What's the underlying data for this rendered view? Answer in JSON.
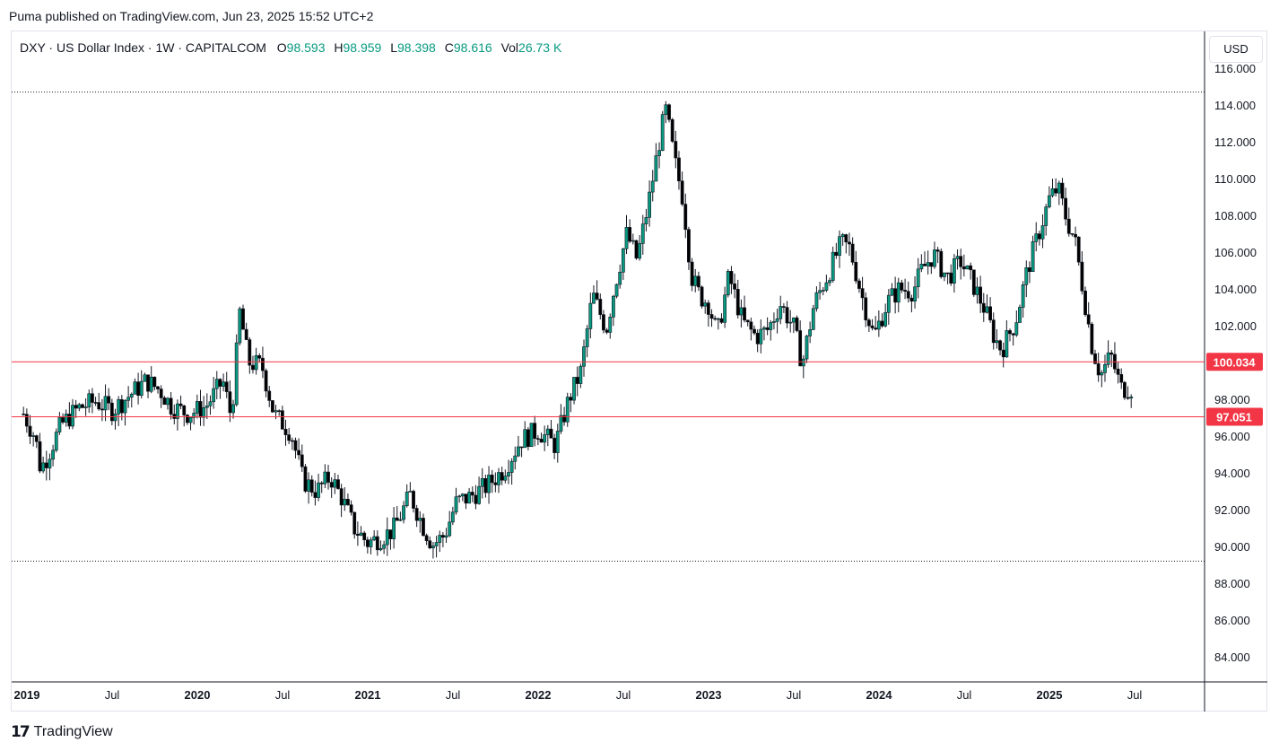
{
  "header": {
    "publish_text": "Puma published on TradingView.com, Jun 23, 2025 15:52 UTC+2"
  },
  "legend": {
    "symbol": "DXY · US Dollar Index · 1W · CAPITALCOM",
    "o_label": "O",
    "o_value": "98.593",
    "h_label": "H",
    "h_value": "98.959",
    "l_label": "L",
    "l_value": "98.398",
    "c_label": "C",
    "c_value": "98.616",
    "vol_label": "Vol",
    "vol_value": "26.73 K"
  },
  "currency_button": "USD",
  "footer": {
    "brand": "TradingView",
    "logo_glyph": "17"
  },
  "colors": {
    "up": "#089981",
    "down": "#f23645",
    "hline": "#f23645",
    "candle_body_down": "#000000"
  },
  "chart_data": {
    "type": "candlestick",
    "interval": "1W",
    "ylim": [
      83,
      116
    ],
    "y_ticks": [
      "84.000",
      "86.000",
      "88.000",
      "90.000",
      "92.000",
      "94.000",
      "96.000",
      "98.000",
      "100.000",
      "102.000",
      "104.000",
      "106.000",
      "108.000",
      "110.000",
      "112.000",
      "114.000",
      "116.000"
    ],
    "x_ticks": [
      {
        "label": "2019",
        "t": 2019.0,
        "bold": true
      },
      {
        "label": "Jul",
        "t": 2019.5,
        "bold": false
      },
      {
        "label": "2020",
        "t": 2020.0,
        "bold": true
      },
      {
        "label": "Jul",
        "t": 2020.5,
        "bold": false
      },
      {
        "label": "2021",
        "t": 2021.0,
        "bold": true
      },
      {
        "label": "Jul",
        "t": 2021.5,
        "bold": false
      },
      {
        "label": "2022",
        "t": 2022.0,
        "bold": true
      },
      {
        "label": "Jul",
        "t": 2022.5,
        "bold": false
      },
      {
        "label": "2023",
        "t": 2023.0,
        "bold": true
      },
      {
        "label": "Jul",
        "t": 2023.5,
        "bold": false
      },
      {
        "label": "2024",
        "t": 2024.0,
        "bold": true
      },
      {
        "label": "Jul",
        "t": 2024.5,
        "bold": false
      },
      {
        "label": "2025",
        "t": 2025.0,
        "bold": true
      },
      {
        "label": "Jul",
        "t": 2025.5,
        "bold": false
      }
    ],
    "horizontal_lines": [
      {
        "value": 100.034,
        "label": "100.034"
      },
      {
        "value": 97.051,
        "label": "97.051"
      }
    ],
    "range_lines": [
      114.7,
      89.2
    ],
    "price_path": [
      [
        2018.98,
        97.2
      ],
      [
        2019.05,
        95.9
      ],
      [
        2019.08,
        94.2
      ],
      [
        2019.12,
        94.9
      ],
      [
        2019.2,
        96.6
      ],
      [
        2019.3,
        97.5
      ],
      [
        2019.4,
        97.9
      ],
      [
        2019.5,
        97.4
      ],
      [
        2019.6,
        98.2
      ],
      [
        2019.7,
        99.0
      ],
      [
        2019.78,
        98.5
      ],
      [
        2019.85,
        97.6
      ],
      [
        2019.95,
        97.2
      ],
      [
        2020.05,
        97.6
      ],
      [
        2020.15,
        99.0
      ],
      [
        2020.2,
        97.0
      ],
      [
        2020.25,
        102.8
      ],
      [
        2020.3,
        100.0
      ],
      [
        2020.38,
        99.8
      ],
      [
        2020.45,
        97.2
      ],
      [
        2020.55,
        96.2
      ],
      [
        2020.62,
        93.6
      ],
      [
        2020.7,
        93.0
      ],
      [
        2020.78,
        93.8
      ],
      [
        2020.85,
        92.6
      ],
      [
        2020.92,
        91.0
      ],
      [
        2021.0,
        90.2
      ],
      [
        2021.08,
        90.5
      ],
      [
        2021.15,
        90.9
      ],
      [
        2021.25,
        92.8
      ],
      [
        2021.32,
        91.2
      ],
      [
        2021.38,
        90.1
      ],
      [
        2021.45,
        90.6
      ],
      [
        2021.52,
        92.4
      ],
      [
        2021.6,
        92.7
      ],
      [
        2021.7,
        93.3
      ],
      [
        2021.8,
        94.2
      ],
      [
        2021.9,
        95.8
      ],
      [
        2022.0,
        96.3
      ],
      [
        2022.1,
        95.5
      ],
      [
        2022.18,
        98.0
      ],
      [
        2022.25,
        99.5
      ],
      [
        2022.32,
        103.7
      ],
      [
        2022.4,
        101.8
      ],
      [
        2022.45,
        104.2
      ],
      [
        2022.52,
        107.0
      ],
      [
        2022.58,
        105.6
      ],
      [
        2022.65,
        108.8
      ],
      [
        2022.72,
        112.5
      ],
      [
        2022.75,
        113.7
      ],
      [
        2022.8,
        111.0
      ],
      [
        2022.85,
        108.9
      ],
      [
        2022.9,
        104.7
      ],
      [
        2022.95,
        103.6
      ],
      [
        2023.0,
        103.2
      ],
      [
        2023.05,
        101.5
      ],
      [
        2023.12,
        104.7
      ],
      [
        2023.2,
        102.2
      ],
      [
        2023.28,
        101.4
      ],
      [
        2023.35,
        101.8
      ],
      [
        2023.42,
        103.2
      ],
      [
        2023.5,
        101.9
      ],
      [
        2023.55,
        99.9
      ],
      [
        2023.62,
        103.2
      ],
      [
        2023.7,
        104.8
      ],
      [
        2023.78,
        106.5
      ],
      [
        2023.83,
        106.2
      ],
      [
        2023.9,
        103.6
      ],
      [
        2023.97,
        101.4
      ],
      [
        2024.05,
        103.3
      ],
      [
        2024.12,
        104.0
      ],
      [
        2024.2,
        103.9
      ],
      [
        2024.25,
        105.0
      ],
      [
        2024.32,
        105.9
      ],
      [
        2024.4,
        104.6
      ],
      [
        2024.48,
        105.5
      ],
      [
        2024.55,
        104.3
      ],
      [
        2024.62,
        102.9
      ],
      [
        2024.68,
        101.3
      ],
      [
        2024.72,
        100.7
      ],
      [
        2024.8,
        102.2
      ],
      [
        2024.87,
        105.0
      ],
      [
        2024.93,
        106.8
      ],
      [
        2025.0,
        108.9
      ],
      [
        2025.05,
        109.5
      ],
      [
        2025.1,
        107.8
      ],
      [
        2025.15,
        106.6
      ],
      [
        2025.2,
        103.8
      ],
      [
        2025.25,
        100.9
      ],
      [
        2025.3,
        99.3
      ],
      [
        2025.36,
        100.4
      ],
      [
        2025.42,
        98.6
      ],
      [
        2025.48,
        98.6
      ]
    ]
  }
}
